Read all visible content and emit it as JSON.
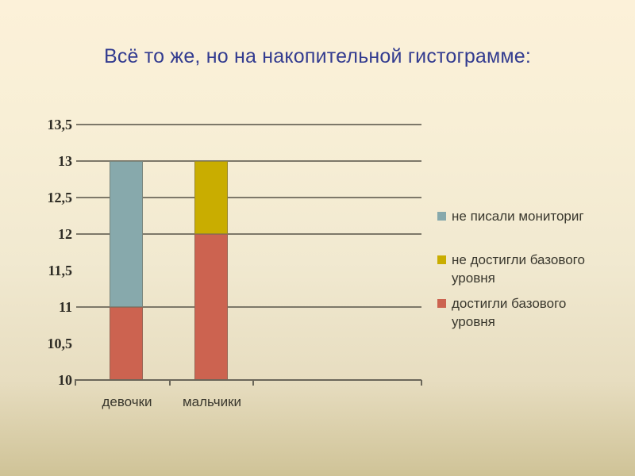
{
  "slide": {
    "title": "Всё то же, но на накопительной гистограмме:"
  },
  "chart_data": {
    "type": "bar",
    "stacked": true,
    "categories": [
      "девочки",
      "мальчики"
    ],
    "series": [
      {
        "name": "достигли базового уровня",
        "color": "#cc6350",
        "values": [
          1,
          2
        ]
      },
      {
        "name": "не достигли базового уровня",
        "color": "#c9ad00",
        "values": [
          0,
          1
        ]
      },
      {
        "name": "не писали мониториг",
        "color": "#87a9ac",
        "values": [
          2,
          0
        ]
      }
    ],
    "value_base": 10,
    "ylim": [
      10,
      13.5
    ],
    "yticks": [
      "13,5",
      "13",
      "12,5",
      "12",
      "11,5",
      "11",
      "10,5",
      "10"
    ],
    "gridline_values": [
      13.5,
      13,
      12.5,
      12,
      11
    ],
    "grid": true,
    "legend_position": "right",
    "legend": [
      {
        "label": "не писали мониториг",
        "color": "#87a9ac"
      },
      {
        "label": "не достигли базового уровня",
        "color": "#c9ad00"
      },
      {
        "label": "достигли базового уровня",
        "color": "#cc6350"
      }
    ]
  }
}
